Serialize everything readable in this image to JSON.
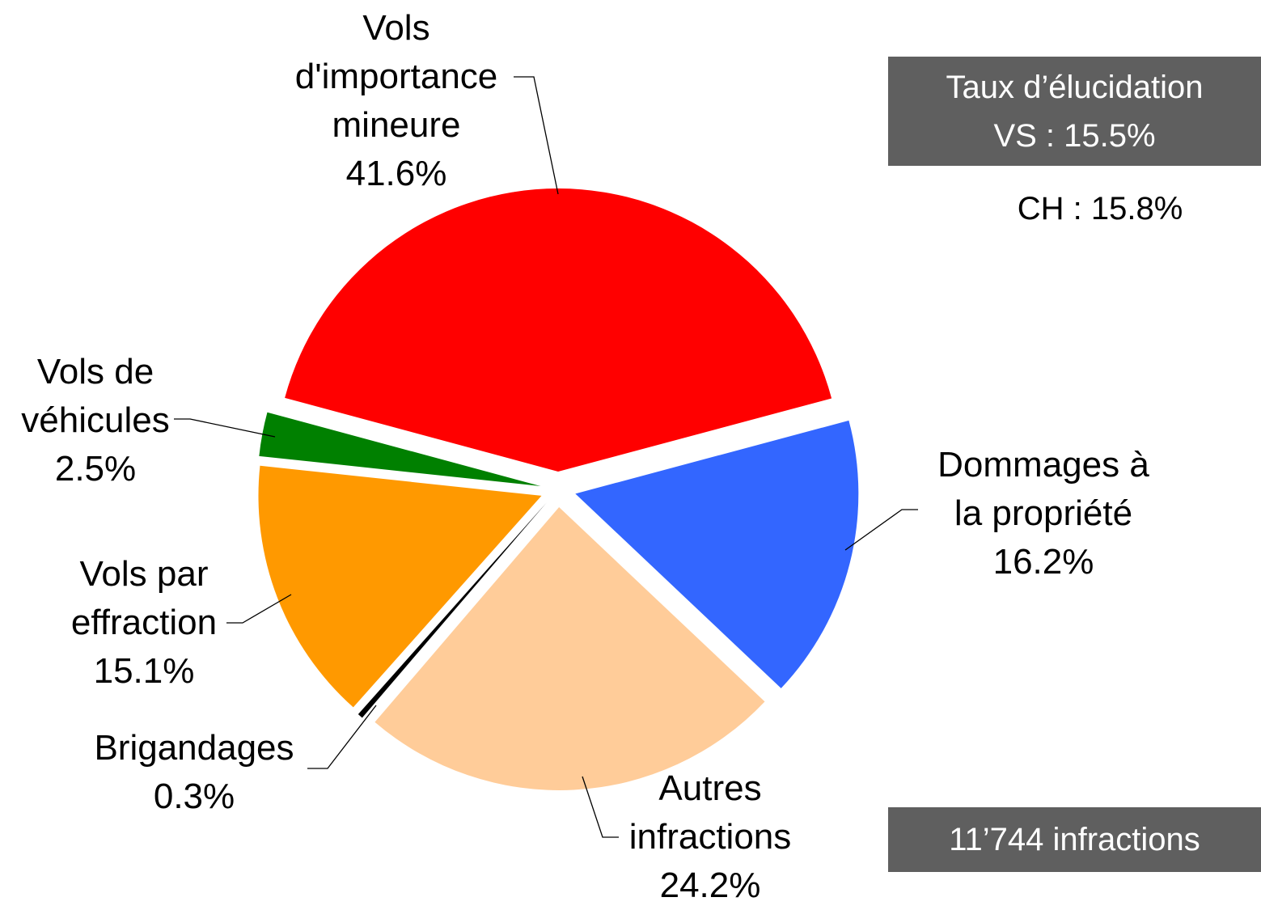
{
  "chart_data": {
    "type": "pie",
    "categories": [
      "Vols d'importance mineure",
      "Dommages à la propriété",
      "Autres infractions",
      "Brigandages",
      "Vols par effraction",
      "Vols de véhicules"
    ],
    "values": [
      41.6,
      16.2,
      24.2,
      0.3,
      15.1,
      2.5
    ],
    "value_labels": [
      "41.6%",
      "16.2%",
      "24.2%",
      "0.3%",
      "15.1%",
      "2.5%"
    ],
    "colors": [
      "#ff0000",
      "#3366ff",
      "#ffcc99",
      "#000000",
      "#ff9900",
      "#008000"
    ],
    "annotations": [
      "Taux d’élucidation",
      "VS : 15.5%",
      "CH : 15.8%",
      "11’744 infractions"
    ]
  }
}
